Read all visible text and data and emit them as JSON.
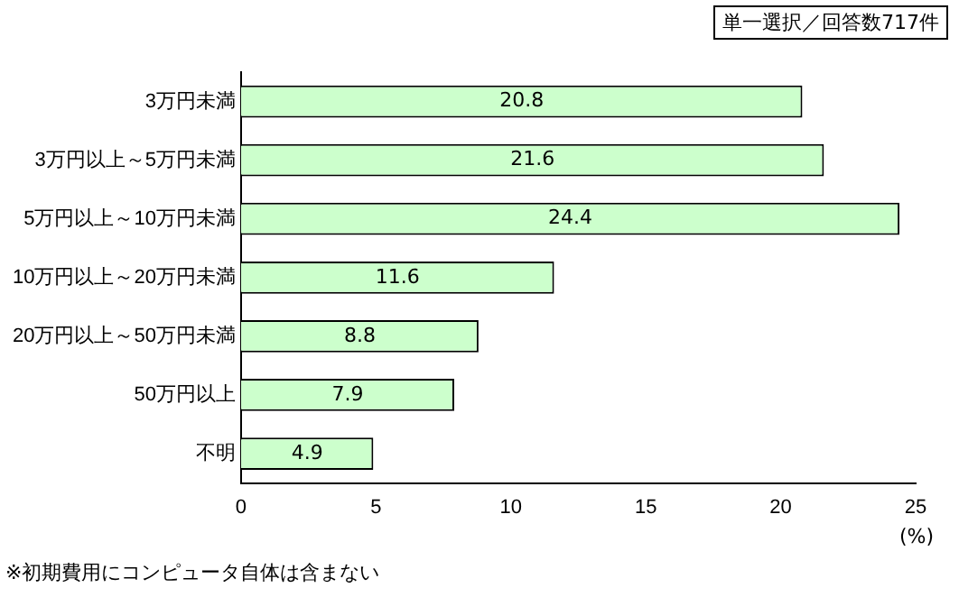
{
  "chart_data": {
    "type": "bar",
    "orientation": "horizontal",
    "xlabel": "(%)",
    "annotations": [
      "単一選択／回答数717件",
      "※初期費用にコンピュータ自体は含まない"
    ],
    "categories": [
      "3万円未満",
      "3万円以上～5万円未満",
      "5万円以上～10万円未満",
      "10万円以上～20万円未満",
      "20万円以上～50万円未満",
      "50万円以上",
      "不明"
    ],
    "values": [
      20.8,
      21.6,
      24.4,
      11.6,
      8.8,
      7.9,
      4.9
    ],
    "color": "#ccffcc",
    "xlim": [
      0,
      25
    ],
    "xticks": [
      0,
      5,
      10,
      15,
      20,
      25
    ],
    "data_labels": true,
    "grid": false,
    "legend": false
  }
}
